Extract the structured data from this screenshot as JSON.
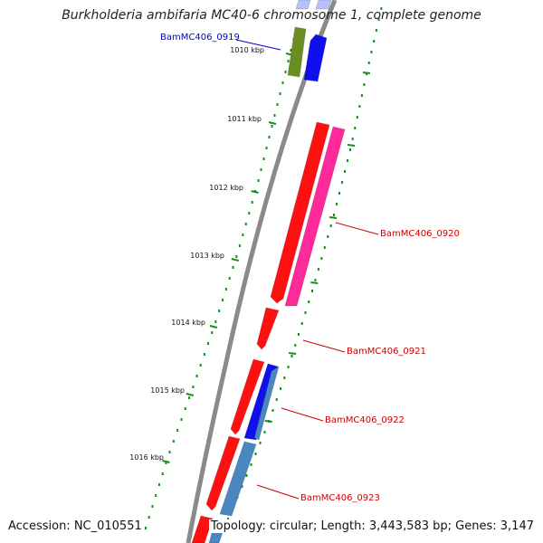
{
  "title": "Burkholderia ambifaria MC40-6 chromosome 1, complete genome",
  "footer": {
    "accession": "Accession: NC_010551",
    "summary": "Topology: circular; Length: 3,443,583 bp; Genes: 3,147"
  },
  "colors": {
    "backbone": "#8a8a8a",
    "tick": "#1f8a1f",
    "label_red": "#cc0000",
    "label_blue": "#0000cc",
    "red_gene": "#ff1010",
    "blue_gene": "#1010ee",
    "pink_gene": "#ff2a9a",
    "steel_gene": "#4a86c0",
    "olive_gene": "#6b8e23"
  },
  "ticks": [
    {
      "label": "1010 kbp"
    },
    {
      "label": "1011 kbp"
    },
    {
      "label": "1012 kbp"
    },
    {
      "label": "1013 kbp"
    },
    {
      "label": "1014 kbp"
    },
    {
      "label": "1015 kbp"
    },
    {
      "label": "1016 kbp"
    }
  ],
  "genes": [
    {
      "label": "BamMC406_0919",
      "color": "blue"
    },
    {
      "label": "BamMC406_0920",
      "color": "red"
    },
    {
      "label": "BamMC406_0921",
      "color": "red"
    },
    {
      "label": "BamMC406_0922",
      "color": "red"
    },
    {
      "label": "BamMC406_0923",
      "color": "red"
    }
  ]
}
